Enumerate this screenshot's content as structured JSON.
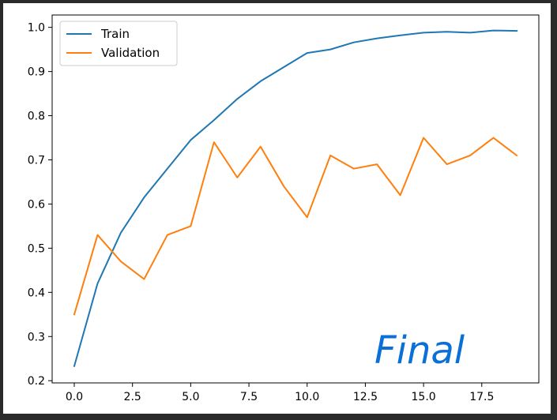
{
  "chart_data": {
    "type": "line",
    "x": [
      0,
      1,
      2,
      3,
      4,
      5,
      6,
      7,
      8,
      9,
      10,
      11,
      12,
      13,
      14,
      15,
      16,
      17,
      18,
      19
    ],
    "series": [
      {
        "name": "Train",
        "color": "#1f77b4",
        "values": [
          0.233,
          0.42,
          0.535,
          0.615,
          0.68,
          0.745,
          0.79,
          0.838,
          0.878,
          0.91,
          0.942,
          0.95,
          0.966,
          0.975,
          0.982,
          0.988,
          0.99,
          0.988,
          0.993,
          0.992
        ]
      },
      {
        "name": "Validation",
        "color": "#ff7f0e",
        "values": [
          0.35,
          0.53,
          0.47,
          0.43,
          0.53,
          0.55,
          0.74,
          0.66,
          0.73,
          0.64,
          0.57,
          0.71,
          0.68,
          0.69,
          0.62,
          0.75,
          0.69,
          0.71,
          0.75,
          0.71
        ]
      }
    ],
    "xticks": [
      0,
      2.5,
      5,
      7.5,
      10,
      12.5,
      15,
      17.5
    ],
    "xtick_labels": [
      "0.0",
      "2.5",
      "5.0",
      "7.5",
      "10.0",
      "12.5",
      "15.0",
      "17.5"
    ],
    "yticks": [
      0.2,
      0.3,
      0.4,
      0.5,
      0.6,
      0.7,
      0.8,
      0.9,
      1.0
    ],
    "ytick_labels": [
      "0.2",
      "0.3",
      "0.4",
      "0.5",
      "0.6",
      "0.7",
      "0.8",
      "0.9",
      "1.0"
    ],
    "xlim": [
      -0.95,
      19.95
    ],
    "ylim": [
      0.195,
      1.028
    ],
    "grid": false,
    "legend_placement": "top-left",
    "annotation": "Final",
    "annotation_color": "#0a6fd6"
  }
}
